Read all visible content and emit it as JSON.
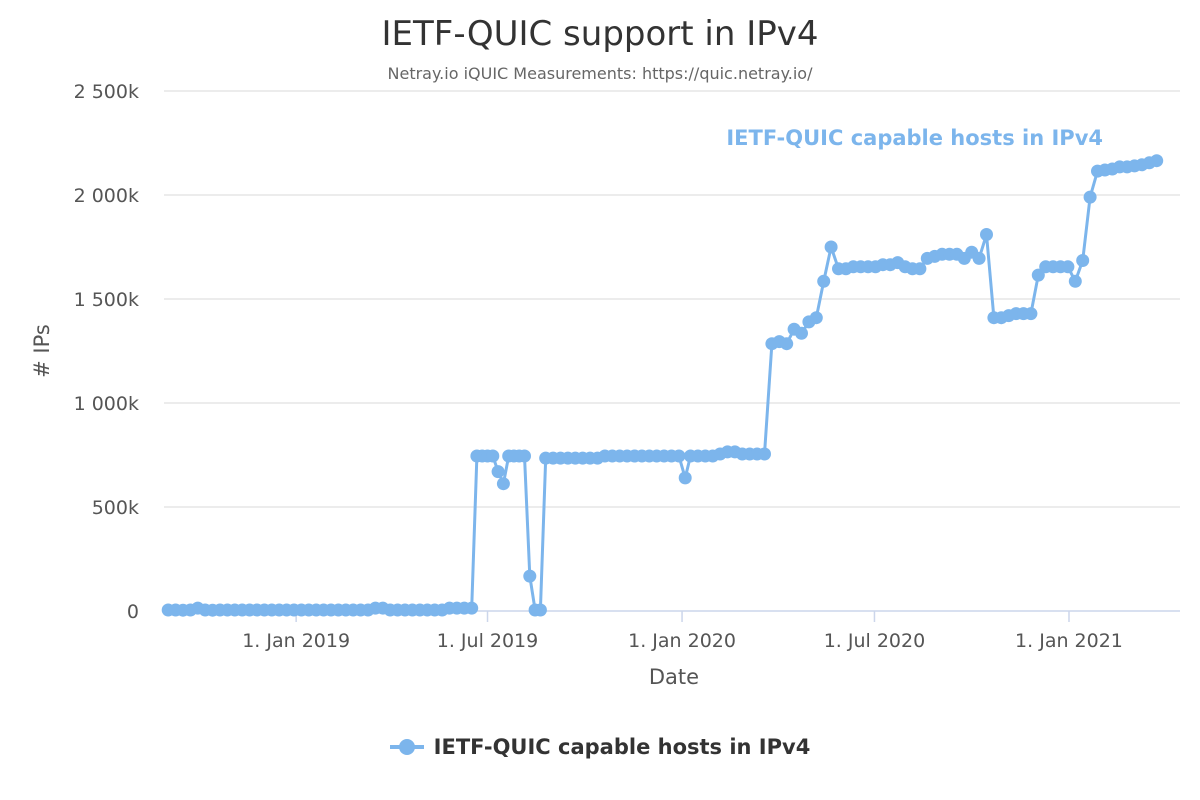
{
  "title": "IETF-QUIC support in IPv4",
  "subtitle": "Netray.io iQUIC Measurements: https://quic.netray.io/",
  "legend": {
    "label": "IETF-QUIC capable hosts in IPv4"
  },
  "colors": {
    "series": "#7cb5ec",
    "grid": "#e6e6e6",
    "axis": "#ccd6eb"
  },
  "chart_data": {
    "type": "line",
    "title": "IETF-QUIC support in IPv4",
    "subtitle": "Netray.io iQUIC Measurements: https://quic.netray.io/",
    "xlabel": "Date",
    "ylabel": "# IPs",
    "x_type": "date",
    "xlim": [
      "2018-08-29",
      "2021-04-16"
    ],
    "ylim": [
      0,
      2500000
    ],
    "yticks": [
      {
        "value": 0,
        "label": "0"
      },
      {
        "value": 500000,
        "label": "500k"
      },
      {
        "value": 1000000,
        "label": "1 000k"
      },
      {
        "value": 1500000,
        "label": "1 500k"
      },
      {
        "value": 2000000,
        "label": "2 000k"
      },
      {
        "value": 2500000,
        "label": "2 500k"
      }
    ],
    "xticks": [
      {
        "date": "2019-01-01",
        "label": "1. Jan 2019"
      },
      {
        "date": "2019-07-01",
        "label": "1. Jul 2019"
      },
      {
        "date": "2020-01-01",
        "label": "1. Jan 2020"
      },
      {
        "date": "2020-07-01",
        "label": "1. Jul 2020"
      },
      {
        "date": "2021-01-01",
        "label": "1. Jan 2021"
      }
    ],
    "grid": true,
    "legend_position": "bottom-center",
    "series": [
      {
        "name": "IETF-QUIC capable hosts in IPv4",
        "label_position": "top-right",
        "points": [
          [
            "2018-09-02",
            5000
          ],
          [
            "2018-09-09",
            5000
          ],
          [
            "2018-09-16",
            4000
          ],
          [
            "2018-09-23",
            5000
          ],
          [
            "2018-09-30",
            14000
          ],
          [
            "2018-10-07",
            5000
          ],
          [
            "2018-10-14",
            4000
          ],
          [
            "2018-10-21",
            5000
          ],
          [
            "2018-10-28",
            5000
          ],
          [
            "2018-11-04",
            5000
          ],
          [
            "2018-11-11",
            5000
          ],
          [
            "2018-11-18",
            5000
          ],
          [
            "2018-11-25",
            5000
          ],
          [
            "2018-12-02",
            5000
          ],
          [
            "2018-12-09",
            5000
          ],
          [
            "2018-12-16",
            5000
          ],
          [
            "2018-12-23",
            5000
          ],
          [
            "2018-12-30",
            5000
          ],
          [
            "2019-01-06",
            5000
          ],
          [
            "2019-01-13",
            5000
          ],
          [
            "2019-01-20",
            5000
          ],
          [
            "2019-01-27",
            5000
          ],
          [
            "2019-02-03",
            5000
          ],
          [
            "2019-02-10",
            5000
          ],
          [
            "2019-02-17",
            5000
          ],
          [
            "2019-02-24",
            5000
          ],
          [
            "2019-03-03",
            5000
          ],
          [
            "2019-03-10",
            5000
          ],
          [
            "2019-03-17",
            14000
          ],
          [
            "2019-03-24",
            14000
          ],
          [
            "2019-03-31",
            5000
          ],
          [
            "2019-04-07",
            5000
          ],
          [
            "2019-04-14",
            5000
          ],
          [
            "2019-04-21",
            5000
          ],
          [
            "2019-04-28",
            5000
          ],
          [
            "2019-05-05",
            5000
          ],
          [
            "2019-05-12",
            5000
          ],
          [
            "2019-05-19",
            5000
          ],
          [
            "2019-05-26",
            14000
          ],
          [
            "2019-06-02",
            14000
          ],
          [
            "2019-06-09",
            14000
          ],
          [
            "2019-06-16",
            14000
          ],
          [
            "2019-06-21",
            745000
          ],
          [
            "2019-06-26",
            745000
          ],
          [
            "2019-07-01",
            745000
          ],
          [
            "2019-07-06",
            745000
          ],
          [
            "2019-07-11",
            670000
          ],
          [
            "2019-07-16",
            612000
          ],
          [
            "2019-07-21",
            745000
          ],
          [
            "2019-07-26",
            745000
          ],
          [
            "2019-07-31",
            745000
          ],
          [
            "2019-08-05",
            745000
          ],
          [
            "2019-08-10",
            168000
          ],
          [
            "2019-08-15",
            5000
          ],
          [
            "2019-08-20",
            5000
          ],
          [
            "2019-08-25",
            735000
          ],
          [
            "2019-09-01",
            735000
          ],
          [
            "2019-09-08",
            735000
          ],
          [
            "2019-09-15",
            735000
          ],
          [
            "2019-09-22",
            735000
          ],
          [
            "2019-09-29",
            735000
          ],
          [
            "2019-10-06",
            735000
          ],
          [
            "2019-10-13",
            735000
          ],
          [
            "2019-10-20",
            745000
          ],
          [
            "2019-10-27",
            745000
          ],
          [
            "2019-11-03",
            745000
          ],
          [
            "2019-11-10",
            745000
          ],
          [
            "2019-11-17",
            745000
          ],
          [
            "2019-11-24",
            745000
          ],
          [
            "2019-12-01",
            745000
          ],
          [
            "2019-12-08",
            745000
          ],
          [
            "2019-12-15",
            745000
          ],
          [
            "2019-12-22",
            745000
          ],
          [
            "2019-12-29",
            745000
          ],
          [
            "2020-01-04",
            640000
          ],
          [
            "2020-01-09",
            745000
          ],
          [
            "2020-01-16",
            745000
          ],
          [
            "2020-01-23",
            745000
          ],
          [
            "2020-01-30",
            745000
          ],
          [
            "2020-02-06",
            755000
          ],
          [
            "2020-02-13",
            765000
          ],
          [
            "2020-02-20",
            765000
          ],
          [
            "2020-02-27",
            755000
          ],
          [
            "2020-03-05",
            755000
          ],
          [
            "2020-03-12",
            755000
          ],
          [
            "2020-03-19",
            755000
          ],
          [
            "2020-03-26",
            1285000
          ],
          [
            "2020-04-02",
            1295000
          ],
          [
            "2020-04-09",
            1285000
          ],
          [
            "2020-04-16",
            1355000
          ],
          [
            "2020-04-23",
            1335000
          ],
          [
            "2020-04-30",
            1390000
          ],
          [
            "2020-05-07",
            1410000
          ],
          [
            "2020-05-14",
            1585000
          ],
          [
            "2020-05-21",
            1750000
          ],
          [
            "2020-05-28",
            1645000
          ],
          [
            "2020-06-04",
            1645000
          ],
          [
            "2020-06-11",
            1655000
          ],
          [
            "2020-06-18",
            1655000
          ],
          [
            "2020-06-25",
            1655000
          ],
          [
            "2020-07-02",
            1655000
          ],
          [
            "2020-07-09",
            1665000
          ],
          [
            "2020-07-16",
            1665000
          ],
          [
            "2020-07-23",
            1675000
          ],
          [
            "2020-07-30",
            1655000
          ],
          [
            "2020-08-06",
            1645000
          ],
          [
            "2020-08-13",
            1645000
          ],
          [
            "2020-08-20",
            1695000
          ],
          [
            "2020-08-27",
            1705000
          ],
          [
            "2020-09-03",
            1715000
          ],
          [
            "2020-09-10",
            1715000
          ],
          [
            "2020-09-17",
            1715000
          ],
          [
            "2020-09-24",
            1695000
          ],
          [
            "2020-10-01",
            1725000
          ],
          [
            "2020-10-08",
            1695000
          ],
          [
            "2020-10-15",
            1810000
          ],
          [
            "2020-10-22",
            1410000
          ],
          [
            "2020-10-29",
            1410000
          ],
          [
            "2020-11-05",
            1420000
          ],
          [
            "2020-11-12",
            1430000
          ],
          [
            "2020-11-19",
            1430000
          ],
          [
            "2020-11-26",
            1430000
          ],
          [
            "2020-12-03",
            1615000
          ],
          [
            "2020-12-10",
            1655000
          ],
          [
            "2020-12-17",
            1655000
          ],
          [
            "2020-12-24",
            1655000
          ],
          [
            "2020-12-31",
            1655000
          ],
          [
            "2021-01-07",
            1585000
          ],
          [
            "2021-01-14",
            1685000
          ],
          [
            "2021-01-21",
            1990000
          ],
          [
            "2021-01-28",
            2115000
          ],
          [
            "2021-02-04",
            2120000
          ],
          [
            "2021-02-11",
            2125000
          ],
          [
            "2021-02-18",
            2135000
          ],
          [
            "2021-02-25",
            2135000
          ],
          [
            "2021-03-04",
            2140000
          ],
          [
            "2021-03-11",
            2145000
          ],
          [
            "2021-03-18",
            2155000
          ],
          [
            "2021-03-25",
            2165000
          ]
        ]
      }
    ]
  }
}
